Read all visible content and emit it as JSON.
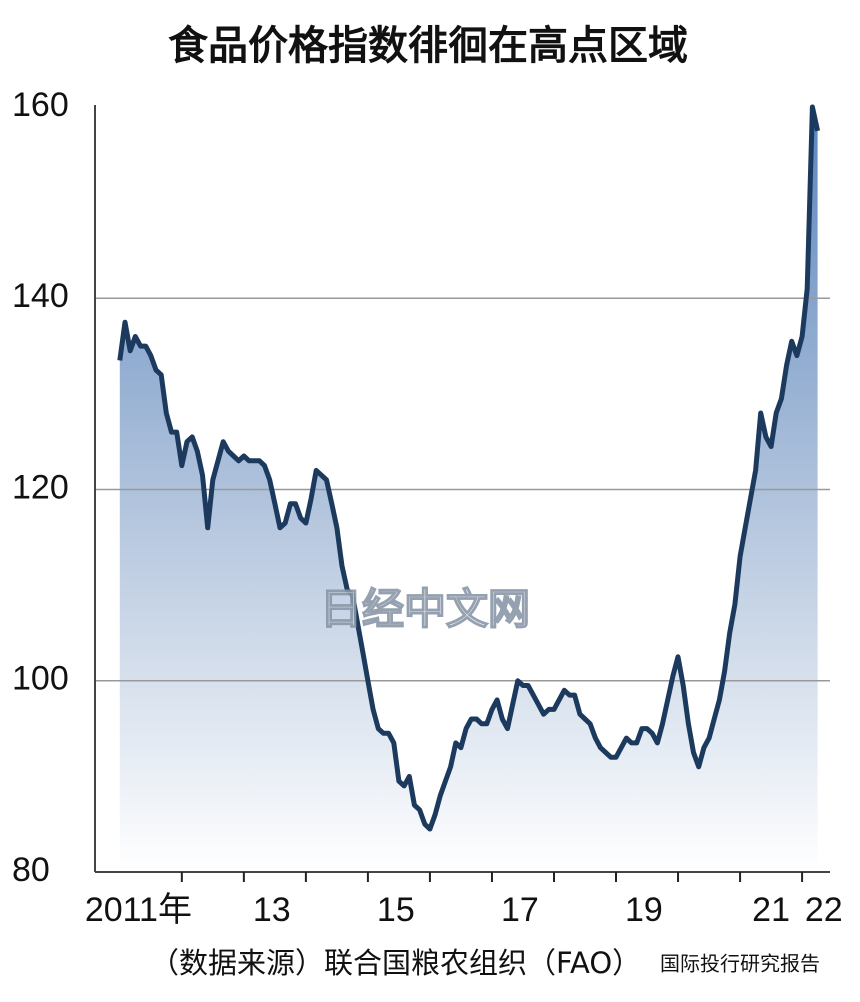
{
  "chart_data": {
    "type": "line",
    "title": "食品价格指数徘徊在高点区域",
    "source": "（数据来源）联合国粮农组织（FAO）",
    "watermark": "日经中文网",
    "footer": "国际投行研究报告",
    "color": "#1c3a5e",
    "xlim": [
      2010.6,
      2022.45
    ],
    "ylim": [
      80,
      160
    ],
    "yticks": [
      80,
      100,
      120,
      140,
      160
    ],
    "grid": true,
    "xticks": [
      {
        "value": 2011.3,
        "label": "2011年"
      },
      {
        "value": 2013.45,
        "label": "13"
      },
      {
        "value": 2015.45,
        "label": "15"
      },
      {
        "value": 2017.45,
        "label": "17"
      },
      {
        "value": 2019.45,
        "label": "19"
      },
      {
        "value": 2021.5,
        "label": "21"
      },
      {
        "value": 2022.35,
        "label": "22"
      }
    ],
    "xtick_marks": [
      2012,
      2013,
      2014,
      2015,
      2016,
      2017,
      2018,
      2019,
      2020,
      2021,
      2022
    ],
    "x": [
      2011.0,
      2011.083,
      2011.167,
      2011.25,
      2011.333,
      2011.417,
      2011.5,
      2011.583,
      2011.667,
      2011.75,
      2011.833,
      2011.917,
      2012.0,
      2012.083,
      2012.167,
      2012.25,
      2012.333,
      2012.417,
      2012.5,
      2012.583,
      2012.667,
      2012.75,
      2012.833,
      2012.917,
      2013.0,
      2013.083,
      2013.167,
      2013.25,
      2013.333,
      2013.417,
      2013.5,
      2013.583,
      2013.667,
      2013.75,
      2013.833,
      2013.917,
      2014.0,
      2014.083,
      2014.167,
      2014.25,
      2014.333,
      2014.417,
      2014.5,
      2014.583,
      2014.667,
      2014.75,
      2014.833,
      2014.917,
      2015.0,
      2015.083,
      2015.167,
      2015.25,
      2015.333,
      2015.417,
      2015.5,
      2015.583,
      2015.667,
      2015.75,
      2015.833,
      2015.917,
      2016.0,
      2016.083,
      2016.167,
      2016.25,
      2016.333,
      2016.417,
      2016.5,
      2016.583,
      2016.667,
      2016.75,
      2016.833,
      2016.917,
      2017.0,
      2017.083,
      2017.167,
      2017.25,
      2017.333,
      2017.417,
      2017.5,
      2017.583,
      2017.667,
      2017.75,
      2017.833,
      2017.917,
      2018.0,
      2018.083,
      2018.167,
      2018.25,
      2018.333,
      2018.417,
      2018.5,
      2018.583,
      2018.667,
      2018.75,
      2018.833,
      2018.917,
      2019.0,
      2019.083,
      2019.167,
      2019.25,
      2019.333,
      2019.417,
      2019.5,
      2019.583,
      2019.667,
      2019.75,
      2019.833,
      2019.917,
      2020.0,
      2020.083,
      2020.167,
      2020.25,
      2020.333,
      2020.417,
      2020.5,
      2020.583,
      2020.667,
      2020.75,
      2020.833,
      2020.917,
      2021.0,
      2021.083,
      2021.167,
      2021.25,
      2021.333,
      2021.417,
      2021.5,
      2021.583,
      2021.667,
      2021.75,
      2021.833,
      2021.917,
      2022.0,
      2022.083,
      2022.167,
      2022.25
    ],
    "values": [
      133.5,
      137.5,
      134.5,
      136,
      135,
      135,
      134,
      132.5,
      132,
      128,
      126,
      126,
      122.5,
      125,
      125.5,
      124,
      121.5,
      116,
      121,
      123,
      125,
      124,
      123.5,
      123,
      123.5,
      123,
      123,
      123,
      122.5,
      121,
      118.5,
      116,
      116.5,
      118.5,
      118.5,
      117,
      116.5,
      119,
      122,
      121.5,
      121,
      118.5,
      116,
      112,
      109.5,
      109,
      106,
      103,
      100,
      97,
      95,
      94.5,
      94.5,
      93.5,
      89.5,
      89,
      90,
      87,
      86.5,
      85,
      84.5,
      86,
      88,
      89.5,
      91,
      93.5,
      93,
      95,
      96,
      96,
      95.5,
      95.5,
      97,
      98,
      96,
      95,
      97.5,
      100,
      99.5,
      99.5,
      98.5,
      97.5,
      96.5,
      97,
      97,
      98,
      99,
      98.5,
      98.5,
      96.5,
      96,
      95.5,
      94,
      93,
      92.5,
      92,
      92,
      93,
      94,
      93.5,
      93.5,
      95,
      95,
      94.5,
      93.5,
      95.5,
      98,
      100.5,
      102.5,
      99.5,
      95.5,
      92.5,
      91,
      93,
      94,
      96,
      98,
      101,
      105,
      108,
      113,
      116,
      119,
      122,
      128,
      125.5,
      124.5,
      128,
      129.5,
      133,
      135.5,
      134,
      136,
      141,
      160,
      157.5
    ]
  }
}
